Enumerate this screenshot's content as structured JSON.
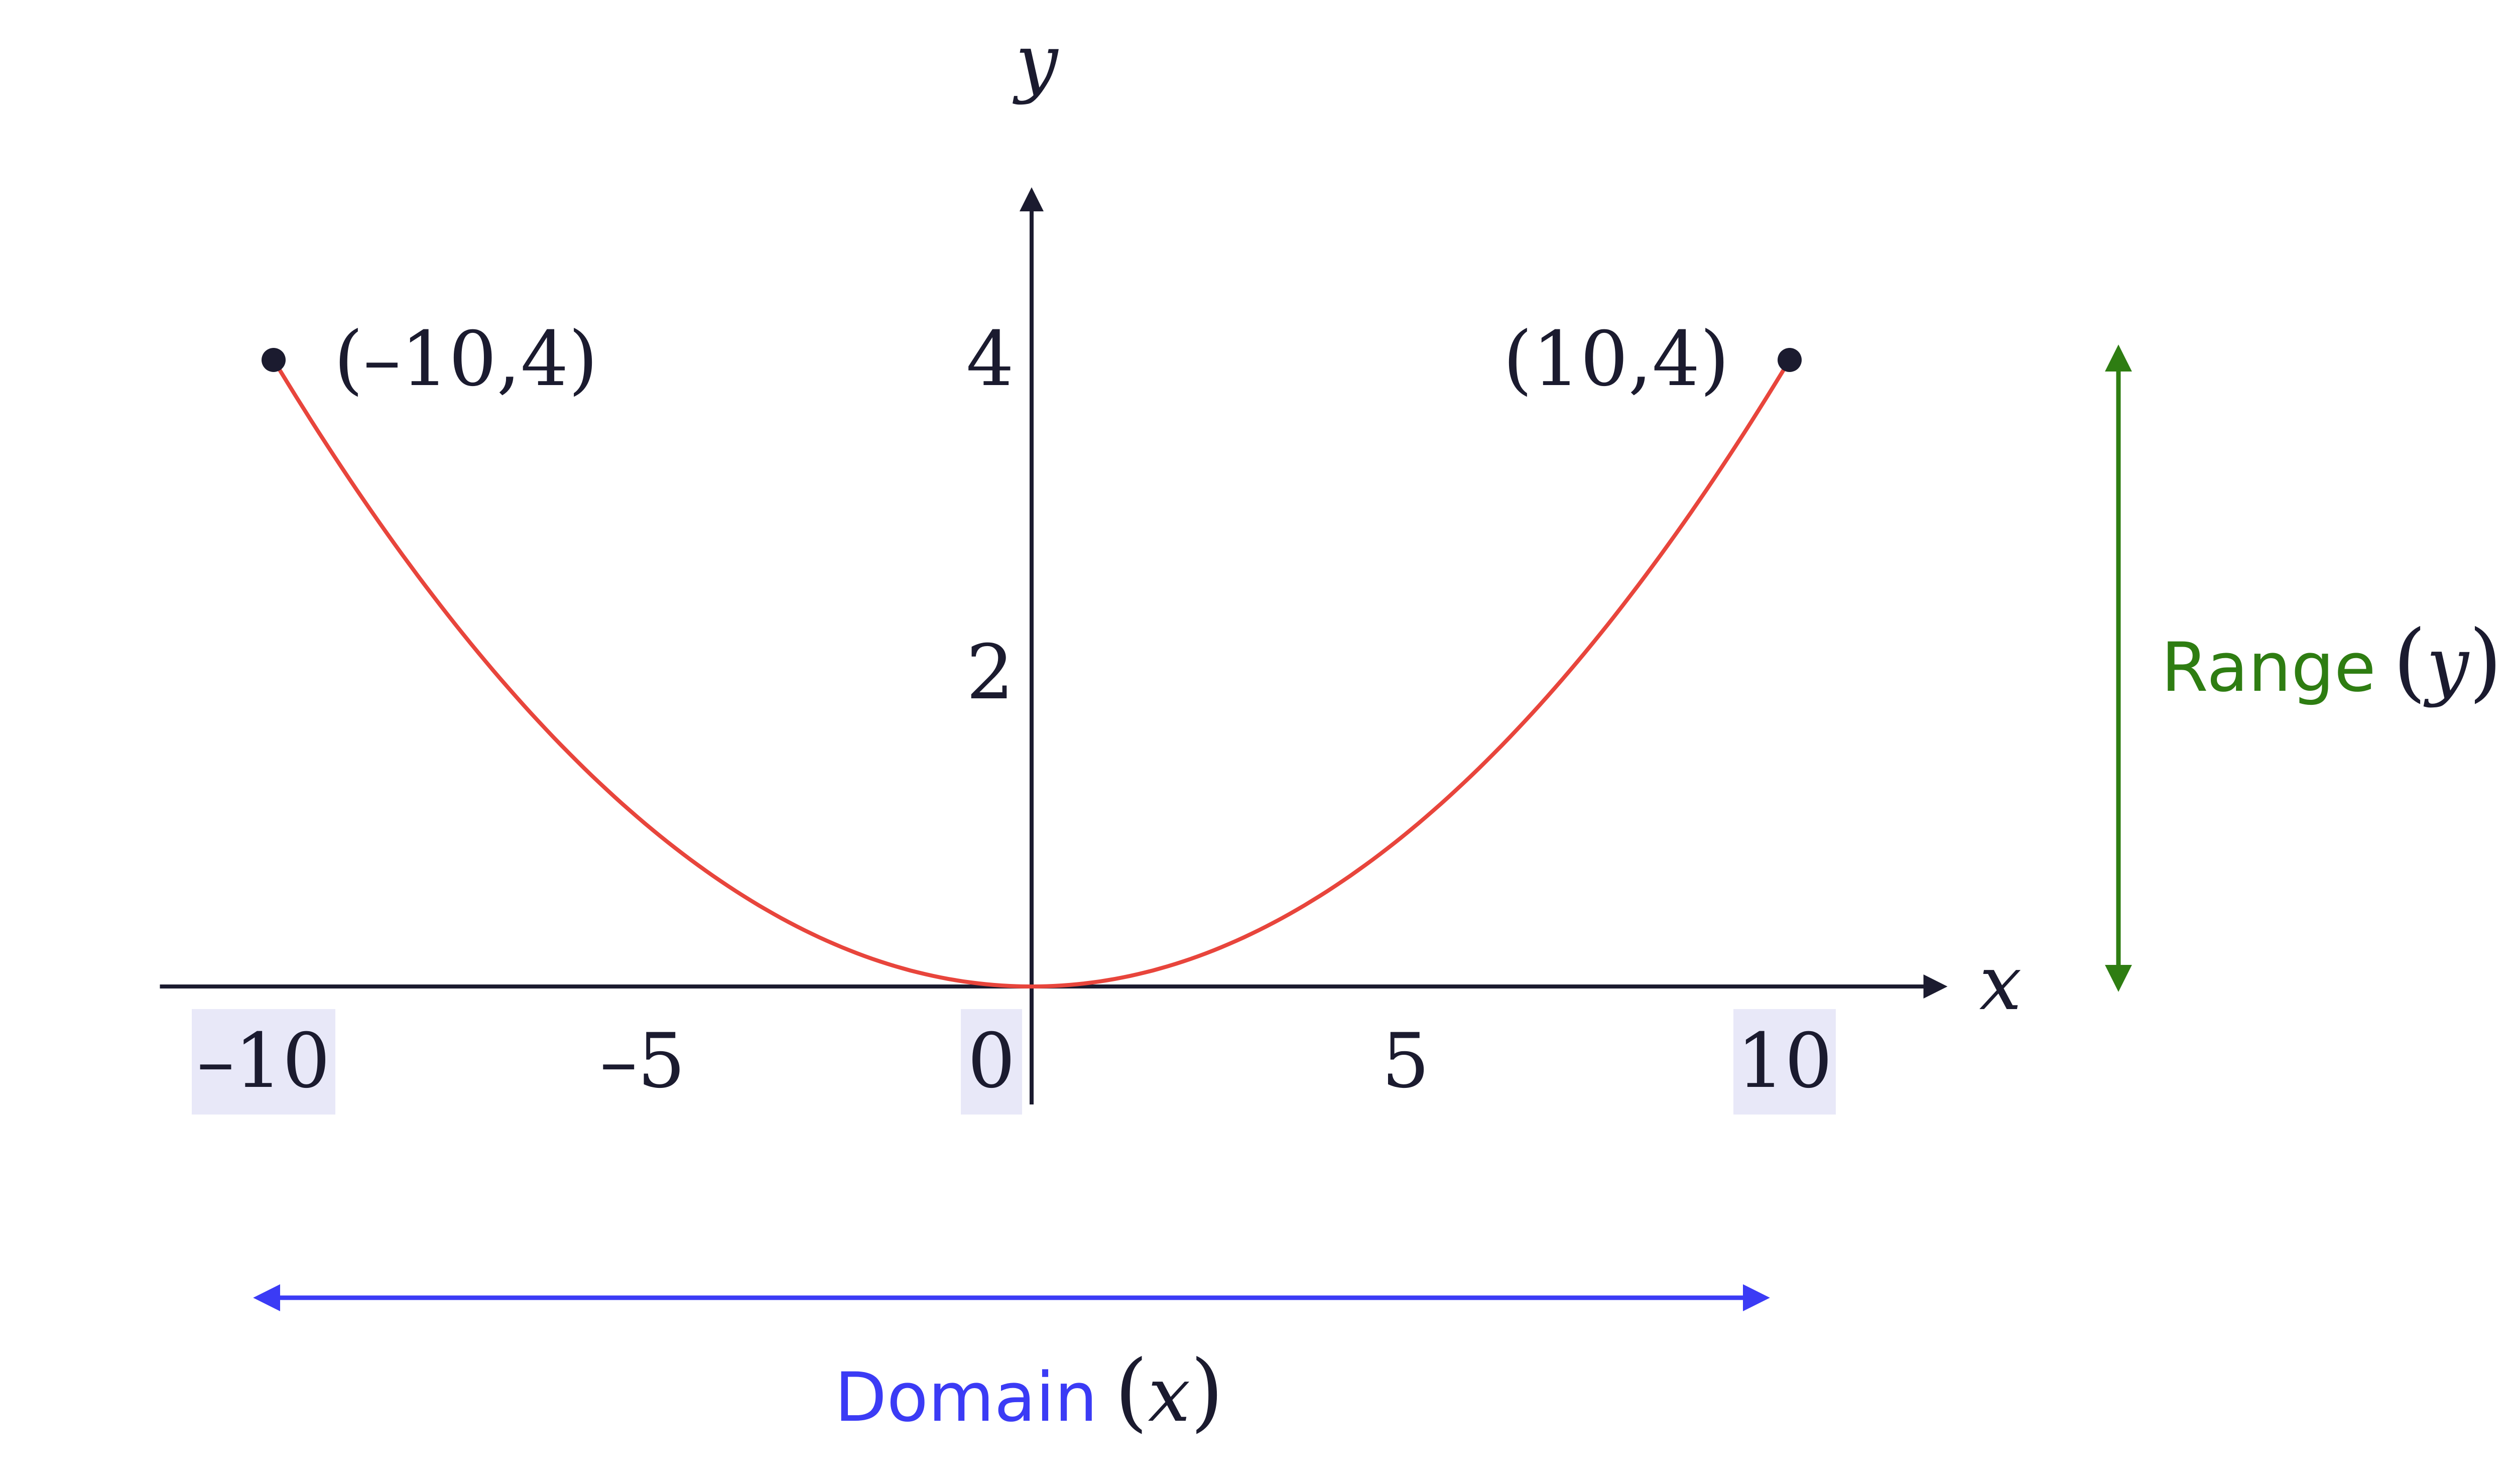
{
  "chart_data": {
    "type": "line",
    "xlabel": "x",
    "ylabel": "y",
    "xlim": [
      -11.5,
      12
    ],
    "ylim": [
      0,
      5.2
    ],
    "x_ticks": [
      {
        "value": -10,
        "label": "–10",
        "highlight": true
      },
      {
        "value": -5,
        "label": "–5",
        "highlight": false
      },
      {
        "value": 0,
        "label": "0",
        "highlight": true
      },
      {
        "value": 5,
        "label": "5",
        "highlight": false
      },
      {
        "value": 10,
        "label": "10",
        "highlight": true
      }
    ],
    "y_ticks": [
      {
        "value": 2,
        "label": "2"
      },
      {
        "value": 4,
        "label": "4"
      }
    ],
    "series": [
      {
        "color": "#e8453c",
        "function": "y = 0.04·x²",
        "x": [
          -10,
          -9,
          -8,
          -7,
          -6,
          -5,
          -4,
          -3,
          -2,
          -1,
          0,
          1,
          2,
          3,
          4,
          5,
          6,
          7,
          8,
          9,
          10
        ],
        "y": [
          4,
          3.24,
          2.56,
          1.96,
          1.44,
          1,
          0.64,
          0.36,
          0.16,
          0.04,
          0,
          0.04,
          0.16,
          0.36,
          0.64,
          1,
          1.44,
          1.96,
          2.56,
          3.24,
          4
        ]
      }
    ],
    "points": [
      {
        "x": -10,
        "y": 4,
        "label": "(–10,4)"
      },
      {
        "x": 10,
        "y": 4,
        "label": "(10,4)"
      }
    ],
    "annotations": {
      "domain": {
        "text": "Domain",
        "var": "x",
        "color": "#3b3bf5",
        "from": -10,
        "to": 10
      },
      "range": {
        "text": "Range",
        "var": "y",
        "color": "#2e7d12",
        "from": 0,
        "to": 4
      }
    },
    "colors": {
      "axis": "#1b1b2f",
      "highlight": "#e8e8f8",
      "curve": "#e8453c",
      "domain": "#3b3bf5",
      "range": "#2e7d12"
    }
  }
}
